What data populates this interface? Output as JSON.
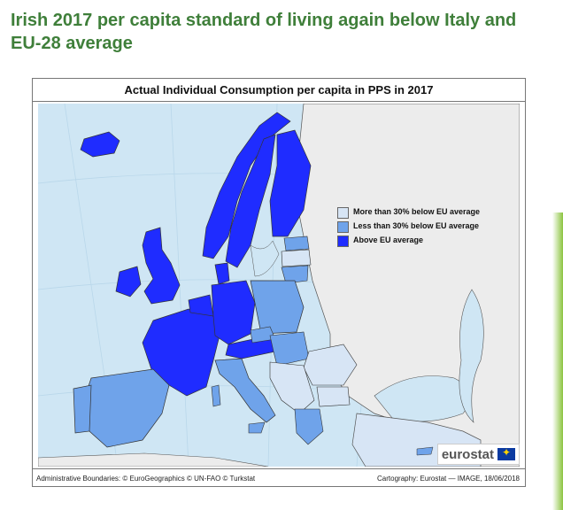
{
  "headline": "Irish 2017 per capita standard of living again below Italy and EU-28 average",
  "map": {
    "title": "Actual Individual Consumption per capita in PPS in 2017",
    "legend": [
      {
        "label": "More than 30% below EU average",
        "color": "#d7e5f5"
      },
      {
        "label": "Less than 30% below EU average",
        "color": "#6fa3ea"
      },
      {
        "label": "Above EU average",
        "color": "#1f2cff"
      }
    ],
    "footer_left": "Administrative Boundaries: © EuroGeographics © UN-FAO © Turkstat",
    "footer_right": "Cartography: Eurostat — IMAGE, 18/06/2018",
    "logo_text": "eurostat",
    "colors": {
      "sea": "#cfe6f4",
      "non_eu": "#ececec"
    }
  }
}
